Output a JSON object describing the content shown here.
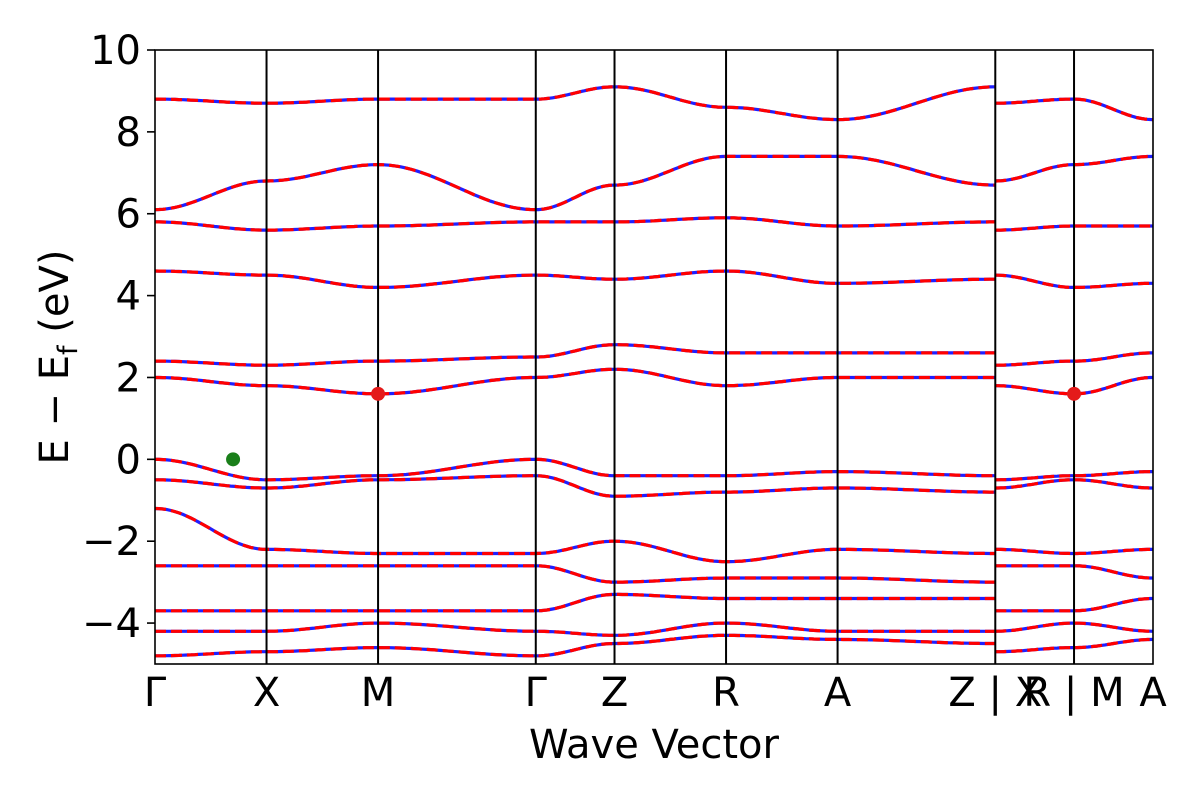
{
  "chart_data": {
    "type": "line",
    "title": "",
    "xlabel": "Wave Vector",
    "ylabel": {
      "main": "E − E",
      "sub": "f",
      "unit": " (eV)"
    },
    "ylim": [
      -5,
      10
    ],
    "yticks": [
      -4,
      -2,
      0,
      2,
      4,
      6,
      8,
      10
    ],
    "ytick_labels": [
      "−4",
      "−2",
      "0",
      "2",
      "4",
      "6",
      "8",
      "10"
    ],
    "grid": false,
    "legend": "none",
    "kpath": [
      {
        "label": "Γ",
        "k": 0.0
      },
      {
        "label": "X",
        "k": 0.5
      },
      {
        "label": "M",
        "k": 1.0
      },
      {
        "label": "Γ",
        "k": 1.707
      },
      {
        "label": "Z",
        "k": 2.06
      },
      {
        "label": "R",
        "k": 2.56
      },
      {
        "label": "A",
        "k": 3.06
      },
      {
        "label": "Z | X",
        "k": 3.767
      },
      {
        "label": "R | M",
        "k": 4.12
      },
      {
        "label": "A",
        "k": 4.474
      }
    ],
    "segment_breaks": [
      3.767,
      4.12
    ],
    "series": [
      {
        "color": "#1f1fff",
        "style": "solid"
      },
      {
        "color": "#ff0000",
        "style": "dashed"
      }
    ],
    "valence_band_maximum": {
      "k": 0.35,
      "energy": 0.0,
      "color": "#1a7f1a"
    },
    "conduction_band_minimum": [
      {
        "k": 1.0,
        "energy": 1.6,
        "color": "#e41a1a"
      },
      {
        "k": 4.12,
        "energy": 1.6,
        "color": "#e41a1a"
      }
    ],
    "bands": [
      {
        "segment": "Γ-X-M-Γ-Z-R-A-Z",
        "approx_energy_at_points": [
          -4.8,
          -4.7,
          -4.6,
          -4.8,
          -4.5,
          -4.3,
          -4.4,
          -4.5
        ]
      },
      {
        "segment": "Γ-X-M-Γ-Z-R-A-Z",
        "approx_energy_at_points": [
          -4.2,
          -4.2,
          -4.0,
          -4.2,
          -4.3,
          -4.0,
          -4.2,
          -4.2
        ]
      },
      {
        "segment": "Γ-X-M-Γ-Z-R-A-Z",
        "approx_energy_at_points": [
          -3.7,
          -3.7,
          -3.7,
          -3.7,
          -3.3,
          -3.4,
          -3.4,
          -3.4
        ]
      },
      {
        "segment": "Γ-X-M-Γ-Z-R-A-Z",
        "approx_energy_at_points": [
          -2.6,
          -2.6,
          -2.6,
          -2.6,
          -3.0,
          -2.9,
          -2.9,
          -3.0
        ]
      },
      {
        "segment": "Γ-X-M-Γ-Z-R-A-Z",
        "approx_energy_at_points": [
          -1.2,
          -2.2,
          -2.3,
          -2.3,
          -2.0,
          -2.5,
          -2.2,
          -2.3
        ]
      },
      {
        "segment": "Γ-X-M-Γ-Z-R-A-Z",
        "approx_energy_at_points": [
          -0.5,
          -0.7,
          -0.5,
          -0.4,
          -0.9,
          -0.8,
          -0.7,
          -0.8
        ]
      },
      {
        "segment": "Γ-X-M-Γ-Z-R-A-Z",
        "approx_energy_at_points": [
          0.0,
          -0.5,
          -0.4,
          0.0,
          -0.4,
          -0.4,
          -0.3,
          -0.4
        ]
      },
      {
        "segment": "Γ-X-M-Γ-Z-R-A-Z",
        "approx_energy_at_points": [
          2.0,
          1.8,
          1.6,
          2.0,
          2.2,
          1.8,
          2.0,
          2.0
        ]
      },
      {
        "segment": "Γ-X-M-Γ-Z-R-A-Z",
        "approx_energy_at_points": [
          2.4,
          2.3,
          2.4,
          2.5,
          2.8,
          2.6,
          2.6,
          2.6
        ]
      },
      {
        "segment": "Γ-X-M-Γ-Z-R-A-Z",
        "approx_energy_at_points": [
          4.6,
          4.5,
          4.2,
          4.5,
          4.4,
          4.6,
          4.3,
          4.4
        ]
      },
      {
        "segment": "Γ-X-M-Γ-Z-R-A-Z",
        "approx_energy_at_points": [
          5.8,
          5.6,
          5.7,
          5.8,
          5.8,
          5.9,
          5.7,
          5.8
        ]
      },
      {
        "segment": "Γ-X-M-Γ-Z-R-A-Z",
        "approx_energy_at_points": [
          6.1,
          6.8,
          7.2,
          6.1,
          6.7,
          7.4,
          7.4,
          6.7
        ]
      },
      {
        "segment": "Γ-X-M-Γ-Z-R-A-Z",
        "approx_energy_at_points": [
          8.8,
          8.7,
          8.8,
          8.8,
          9.1,
          8.6,
          8.3,
          9.1
        ]
      }
    ]
  }
}
